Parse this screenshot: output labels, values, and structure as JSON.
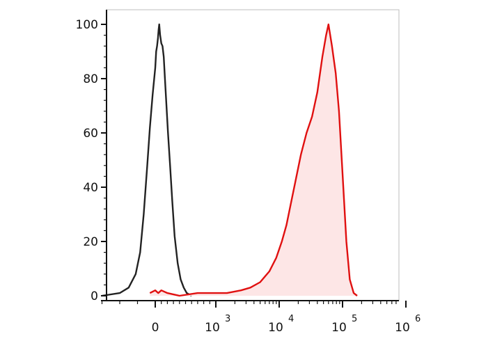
{
  "chart_data": {
    "type": "area",
    "title": "",
    "xlabel": "",
    "ylabel": "",
    "x_scale": "biexponential",
    "ylim": [
      0,
      100
    ],
    "y_ticks": [
      {
        "value": 0,
        "label": "0"
      },
      {
        "value": 20,
        "label": "20"
      },
      {
        "value": 40,
        "label": "40"
      },
      {
        "value": 60,
        "label": "60"
      },
      {
        "value": 80,
        "label": "80"
      },
      {
        "value": 100,
        "label": "100"
      }
    ],
    "x_ticks": [
      {
        "value": 0,
        "base": "0",
        "exp": ""
      },
      {
        "value": 1000,
        "base": "10",
        "exp": "3"
      },
      {
        "value": 10000,
        "base": "10",
        "exp": "4"
      },
      {
        "value": 100000,
        "base": "10",
        "exp": "5"
      },
      {
        "value": 1000000,
        "base": "10",
        "exp": "6"
      }
    ],
    "grid": false,
    "legend": "none",
    "series": [
      {
        "color": "#222222",
        "fill": "none",
        "points": [
          [
            -300,
            0
          ],
          [
            -200,
            1
          ],
          [
            -150,
            3
          ],
          [
            -110,
            8
          ],
          [
            -85,
            16
          ],
          [
            -65,
            30
          ],
          [
            -45,
            48
          ],
          [
            -30,
            62
          ],
          [
            -15,
            74
          ],
          [
            0,
            84
          ],
          [
            15,
            90
          ],
          [
            30,
            92
          ],
          [
            45,
            95
          ],
          [
            55,
            98
          ],
          [
            65,
            100
          ],
          [
            80,
            96
          ],
          [
            100,
            93
          ],
          [
            120,
            92
          ],
          [
            140,
            88
          ],
          [
            160,
            80
          ],
          [
            185,
            70
          ],
          [
            210,
            60
          ],
          [
            245,
            48
          ],
          [
            280,
            35
          ],
          [
            320,
            22
          ],
          [
            370,
            12
          ],
          [
            420,
            6
          ],
          [
            470,
            3
          ],
          [
            520,
            1
          ],
          [
            600,
            0
          ]
        ]
      },
      {
        "color": "#e01010",
        "fill": "#fde6e6",
        "points": [
          [
            -30,
            1
          ],
          [
            0,
            2
          ],
          [
            50,
            1
          ],
          [
            100,
            2
          ],
          [
            200,
            1
          ],
          [
            400,
            0
          ],
          [
            700,
            1
          ],
          [
            1500,
            1
          ],
          [
            2500,
            2
          ],
          [
            3500,
            3
          ],
          [
            5000,
            5
          ],
          [
            7000,
            9
          ],
          [
            9000,
            14
          ],
          [
            11000,
            20
          ],
          [
            13000,
            26
          ],
          [
            15000,
            33
          ],
          [
            18000,
            42
          ],
          [
            22000,
            52
          ],
          [
            27000,
            60
          ],
          [
            33000,
            66
          ],
          [
            40000,
            75
          ],
          [
            48000,
            88
          ],
          [
            55000,
            96
          ],
          [
            60000,
            100
          ],
          [
            68000,
            92
          ],
          [
            78000,
            82
          ],
          [
            88000,
            68
          ],
          [
            100000,
            45
          ],
          [
            115000,
            20
          ],
          [
            130000,
            6
          ],
          [
            150000,
            1
          ],
          [
            170000,
            0
          ]
        ]
      }
    ]
  }
}
